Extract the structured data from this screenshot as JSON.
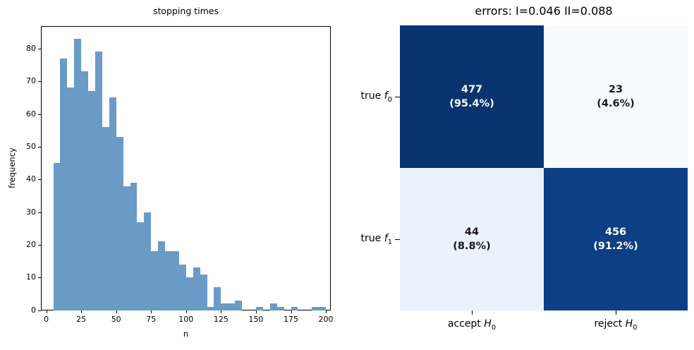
{
  "figure": {
    "background": "#ffffff"
  },
  "chart_data": [
    {
      "type": "bar",
      "subtype": "histogram",
      "title": "stopping times",
      "xlabel": "n",
      "ylabel": "frequency",
      "bar_color": "#699bc6",
      "bin_start": 5,
      "bin_width": 5,
      "values": [
        45,
        77,
        68,
        83,
        73,
        67,
        79,
        56,
        65,
        53,
        38,
        39,
        27,
        30,
        18,
        21,
        18,
        18,
        14,
        10,
        13,
        11,
        1,
        7,
        2,
        2,
        3,
        0,
        0,
        1,
        0,
        2,
        1,
        0,
        1,
        0,
        0,
        1,
        1
      ],
      "xticks": [
        0,
        25,
        50,
        75,
        100,
        125,
        150,
        175,
        200
      ],
      "yticks": [
        0,
        10,
        20,
        30,
        40,
        50,
        60,
        70,
        80
      ],
      "xlim": [
        -4,
        204
      ],
      "ylim": [
        0,
        87
      ],
      "grid": false,
      "legend": "none"
    },
    {
      "type": "heatmap",
      "subtype": "confusion-matrix",
      "title": "errors: I=0.046 II=0.088",
      "type_I_error": 0.046,
      "type_II_error": 0.088,
      "rows": [
        {
          "prefix": "true ",
          "symbol": "f",
          "subscript": "0"
        },
        {
          "prefix": "true ",
          "symbol": "f",
          "subscript": "1"
        }
      ],
      "cols": [
        {
          "prefix": "accept ",
          "symbol": "H",
          "subscript": "0"
        },
        {
          "prefix": "reject ",
          "symbol": "H",
          "subscript": "0"
        }
      ],
      "cells": [
        {
          "row": 0,
          "col": 0,
          "count": 477,
          "percent": 95.4,
          "count_label": "477",
          "percent_label": "(95.4%)",
          "color": "#0a3470",
          "text_color": "#ffffff"
        },
        {
          "row": 0,
          "col": 1,
          "count": 23,
          "percent": 4.6,
          "count_label": "23",
          "percent_label": "(4.6%)",
          "color": "#f7fafe",
          "text_color": "#1a1a1a"
        },
        {
          "row": 1,
          "col": 0,
          "count": 44,
          "percent": 8.8,
          "count_label": "44",
          "percent_label": "(8.8%)",
          "color": "#eaf2fb",
          "text_color": "#1a1a1a"
        },
        {
          "row": 1,
          "col": 1,
          "count": 456,
          "percent": 91.2,
          "count_label": "456",
          "percent_label": "(91.2%)",
          "color": "#0d3f85",
          "text_color": "#ffffff"
        }
      ]
    }
  ]
}
